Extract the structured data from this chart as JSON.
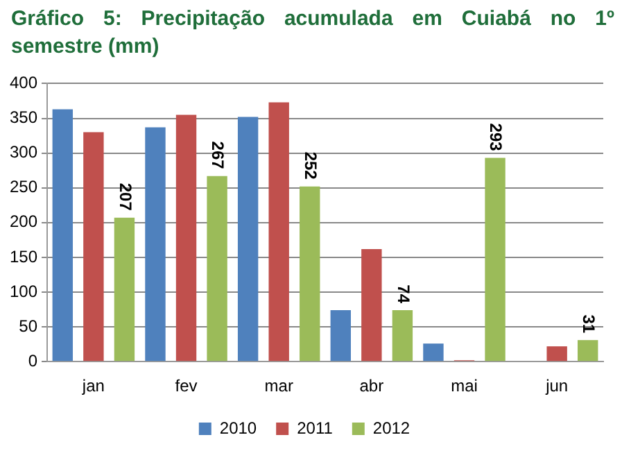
{
  "chart_data": {
    "type": "bar",
    "title": "Gráfico 5: Precipitação acumulada em Cuiabá no 1º semestre (mm)",
    "categories": [
      "jan",
      "fev",
      "mar",
      "abr",
      "mai",
      "jun"
    ],
    "series": [
      {
        "name": "2010",
        "color": "#4f81bd",
        "values": [
          363,
          337,
          352,
          74,
          26,
          0
        ]
      },
      {
        "name": "2011",
        "color": "#c0504d",
        "values": [
          330,
          355,
          373,
          162,
          2,
          22
        ]
      },
      {
        "name": "2012",
        "color": "#9bbb59",
        "values": [
          207,
          267,
          252,
          74,
          293,
          31
        ],
        "value_labels": [
          "207",
          "267",
          "252",
          "74",
          "293",
          "31"
        ]
      }
    ],
    "ylim": [
      0,
      400
    ],
    "yticks": [
      0,
      50,
      100,
      150,
      200,
      250,
      300,
      350,
      400
    ],
    "grid": "y",
    "legend": "bottom"
  }
}
